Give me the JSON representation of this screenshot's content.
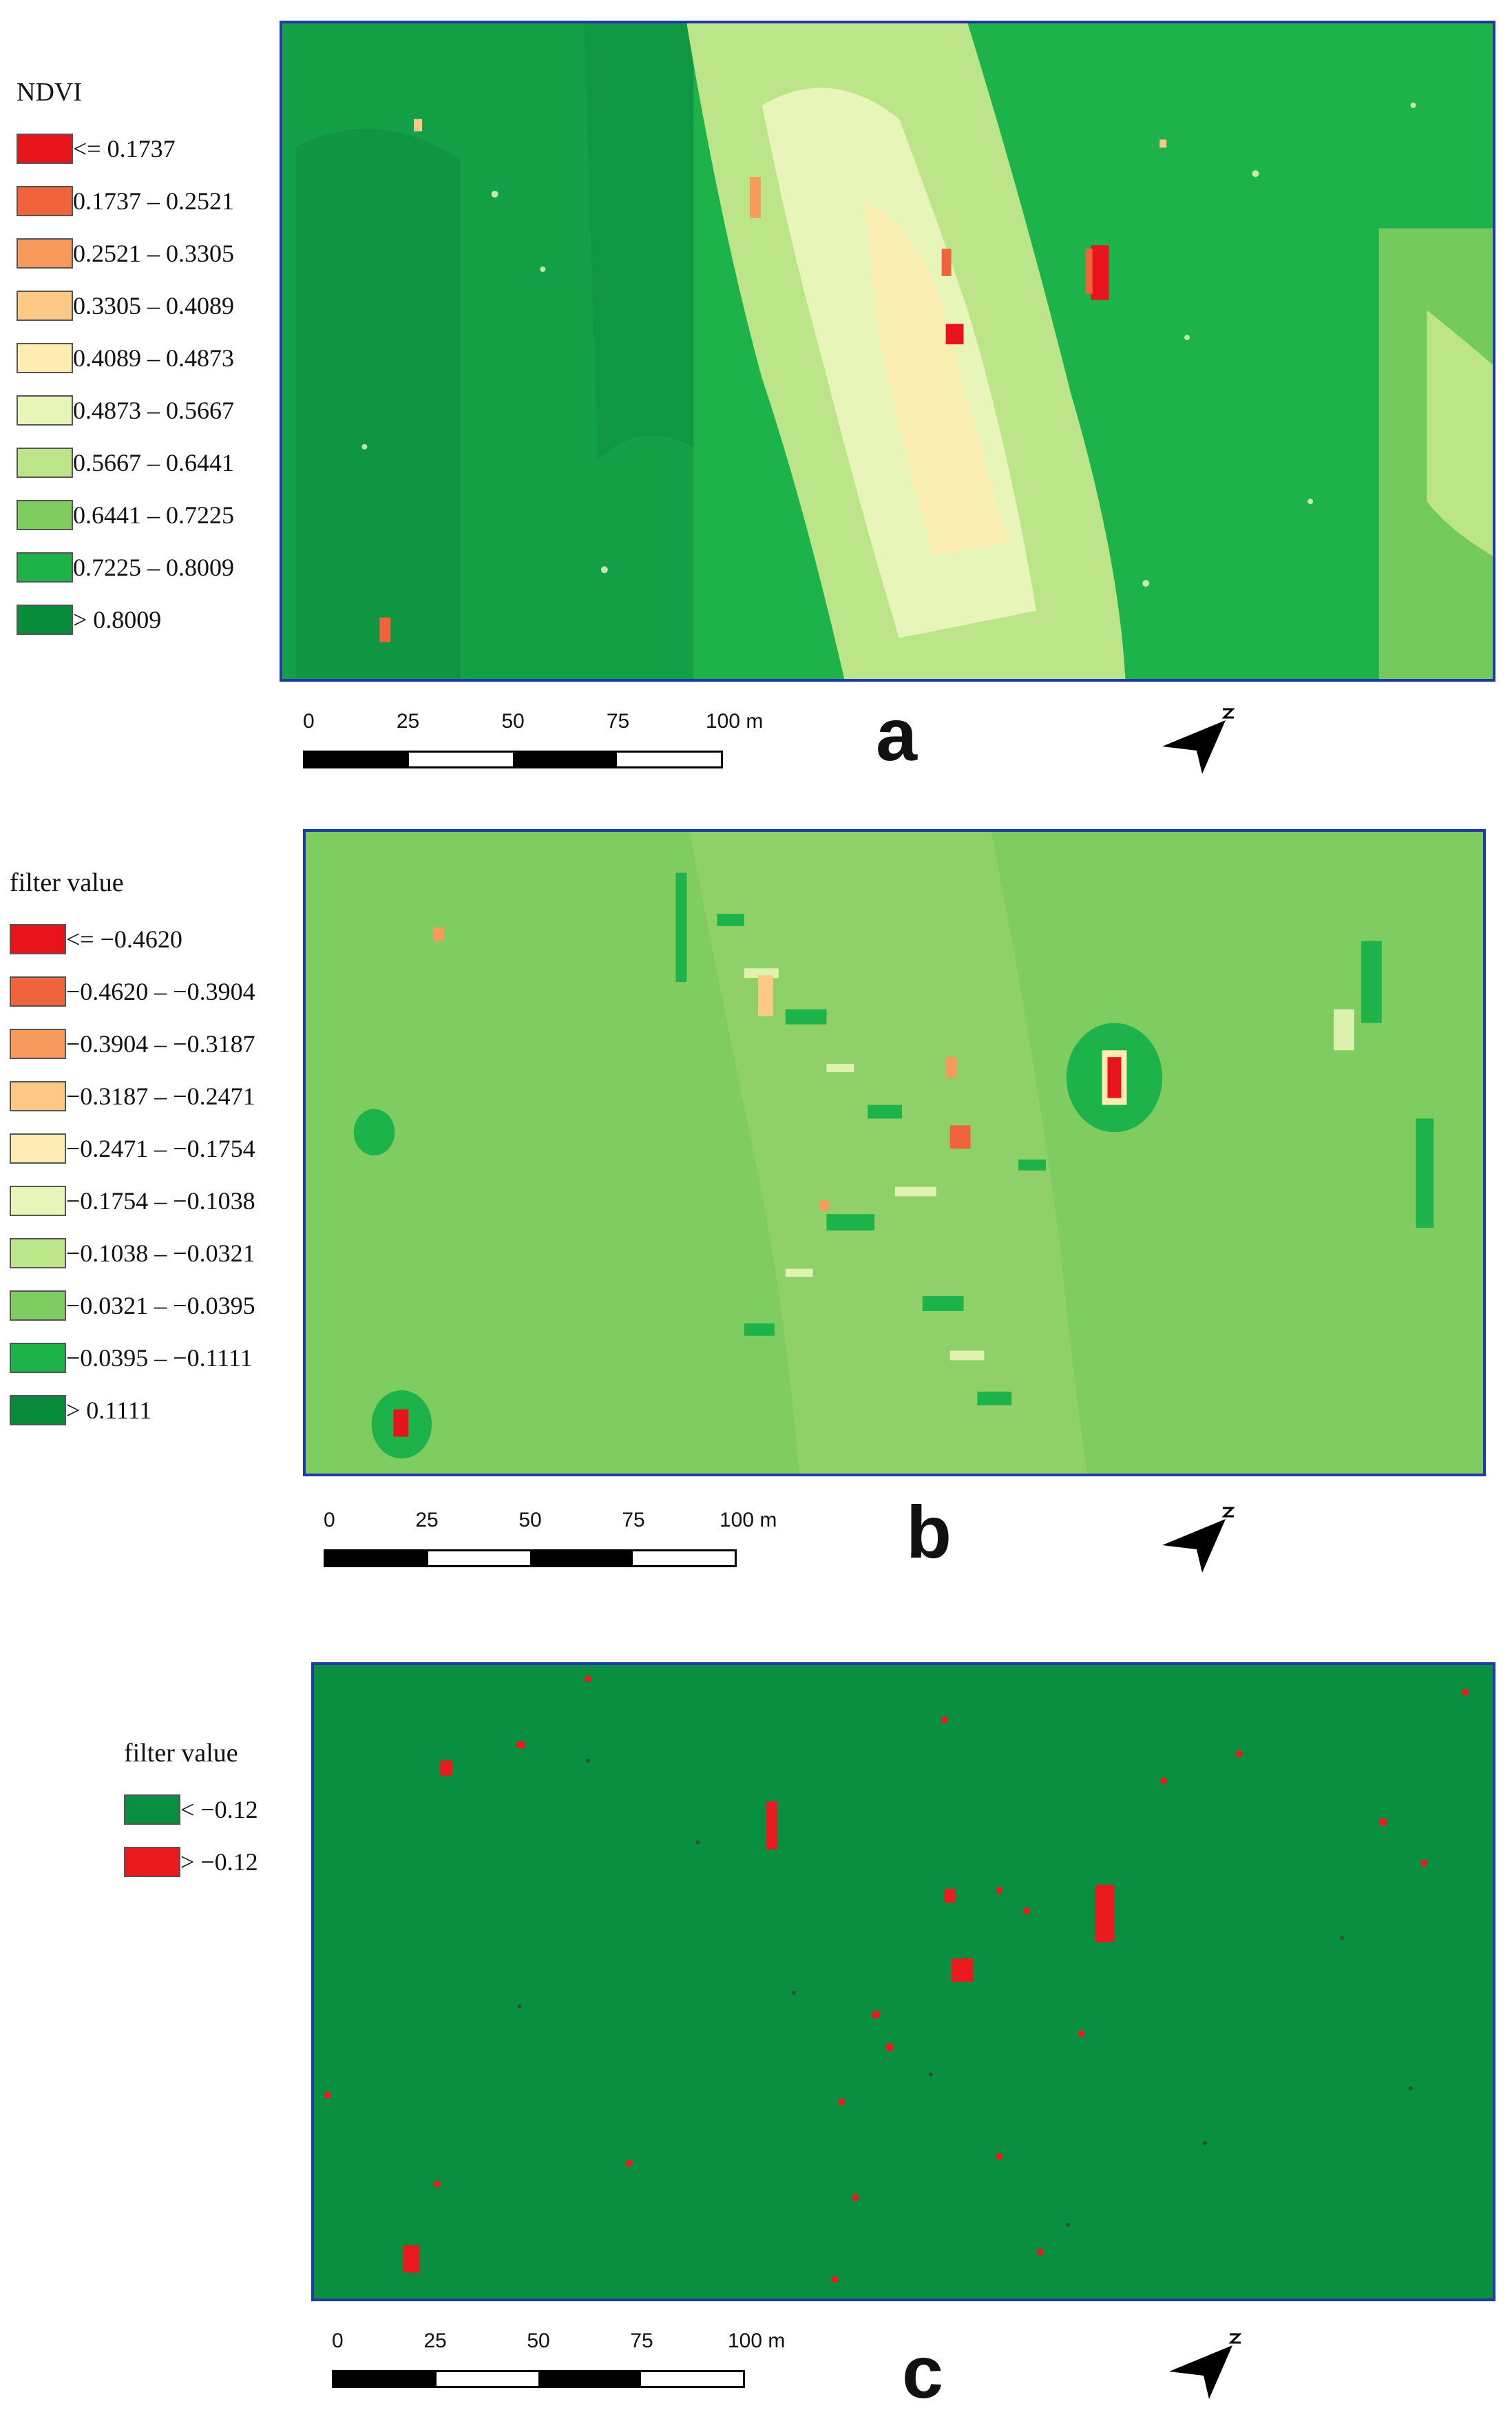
{
  "figure": {
    "panels": [
      {
        "id": "a",
        "letter": "a",
        "legend": {
          "title": "NDVI",
          "entries": [
            {
              "label": "<= 0.1737",
              "color": "#e8141c"
            },
            {
              "label": "0.1737 – 0.2521",
              "color": "#f0643c"
            },
            {
              "label": "0.2521 – 0.3305",
              "color": "#f79a5c"
            },
            {
              "label": "0.3305 – 0.4089",
              "color": "#fbc985"
            },
            {
              "label": "0.4089 – 0.4873",
              "color": "#fdedb2"
            },
            {
              "label": "0.4873 – 0.5667",
              "color": "#e8f5b8"
            },
            {
              "label": "0.5667 – 0.6441",
              "color": "#bce58a"
            },
            {
              "label": "0.6441 – 0.7225",
              "color": "#7fcc60"
            },
            {
              "label": "0.7225 – 0.8009",
              "color": "#1db24a"
            },
            {
              "label": "> 0.8009",
              "color": "#088c3c"
            }
          ]
        },
        "scale": {
          "ticks": [
            "0",
            "25",
            "50",
            "75",
            "100 m"
          ]
        }
      },
      {
        "id": "b",
        "letter": "b",
        "legend": {
          "title": "filter value",
          "entries": [
            {
              "label": "<= −0.4620",
              "color": "#e8141c"
            },
            {
              "label": "−0.4620 – −0.3904",
              "color": "#f0643c"
            },
            {
              "label": "−0.3904 – −0.3187",
              "color": "#f79a5c"
            },
            {
              "label": "−0.3187 – −0.2471",
              "color": "#fbc985"
            },
            {
              "label": "−0.2471 – −0.1754",
              "color": "#fdedb2"
            },
            {
              "label": "−0.1754 – −0.1038",
              "color": "#e8f5b8"
            },
            {
              "label": "−0.1038 – −0.0321",
              "color": "#bce58a"
            },
            {
              "label": "−0.0321 – −0.0395",
              "color": "#7fcc60"
            },
            {
              "label": "−0.0395 – −0.1111",
              "color": "#1db24a"
            },
            {
              "label": "> 0.1111",
              "color": "#088c3c"
            }
          ]
        },
        "scale": {
          "ticks": [
            "0",
            "25",
            "50",
            "75",
            "100 m"
          ]
        }
      },
      {
        "id": "c",
        "letter": "c",
        "legend": {
          "title": "filter value",
          "entries": [
            {
              "label": "< −0.12",
              "color": "#0a8f40"
            },
            {
              "label": "> −0.12",
              "color": "#ea1a1f"
            }
          ]
        },
        "scale": {
          "ticks": [
            "0",
            "25",
            "50",
            "75",
            "100 m"
          ]
        }
      }
    ],
    "colors": {
      "frame": "#1f3aa8",
      "background_green": "#0a8f40",
      "mid_green": "#1db24a",
      "light_green": "#7fcc60",
      "pale_yellow": "#fdedb2",
      "red": "#ea1a1f"
    },
    "icons": {
      "north_arrow": "north-arrow-icon"
    }
  }
}
